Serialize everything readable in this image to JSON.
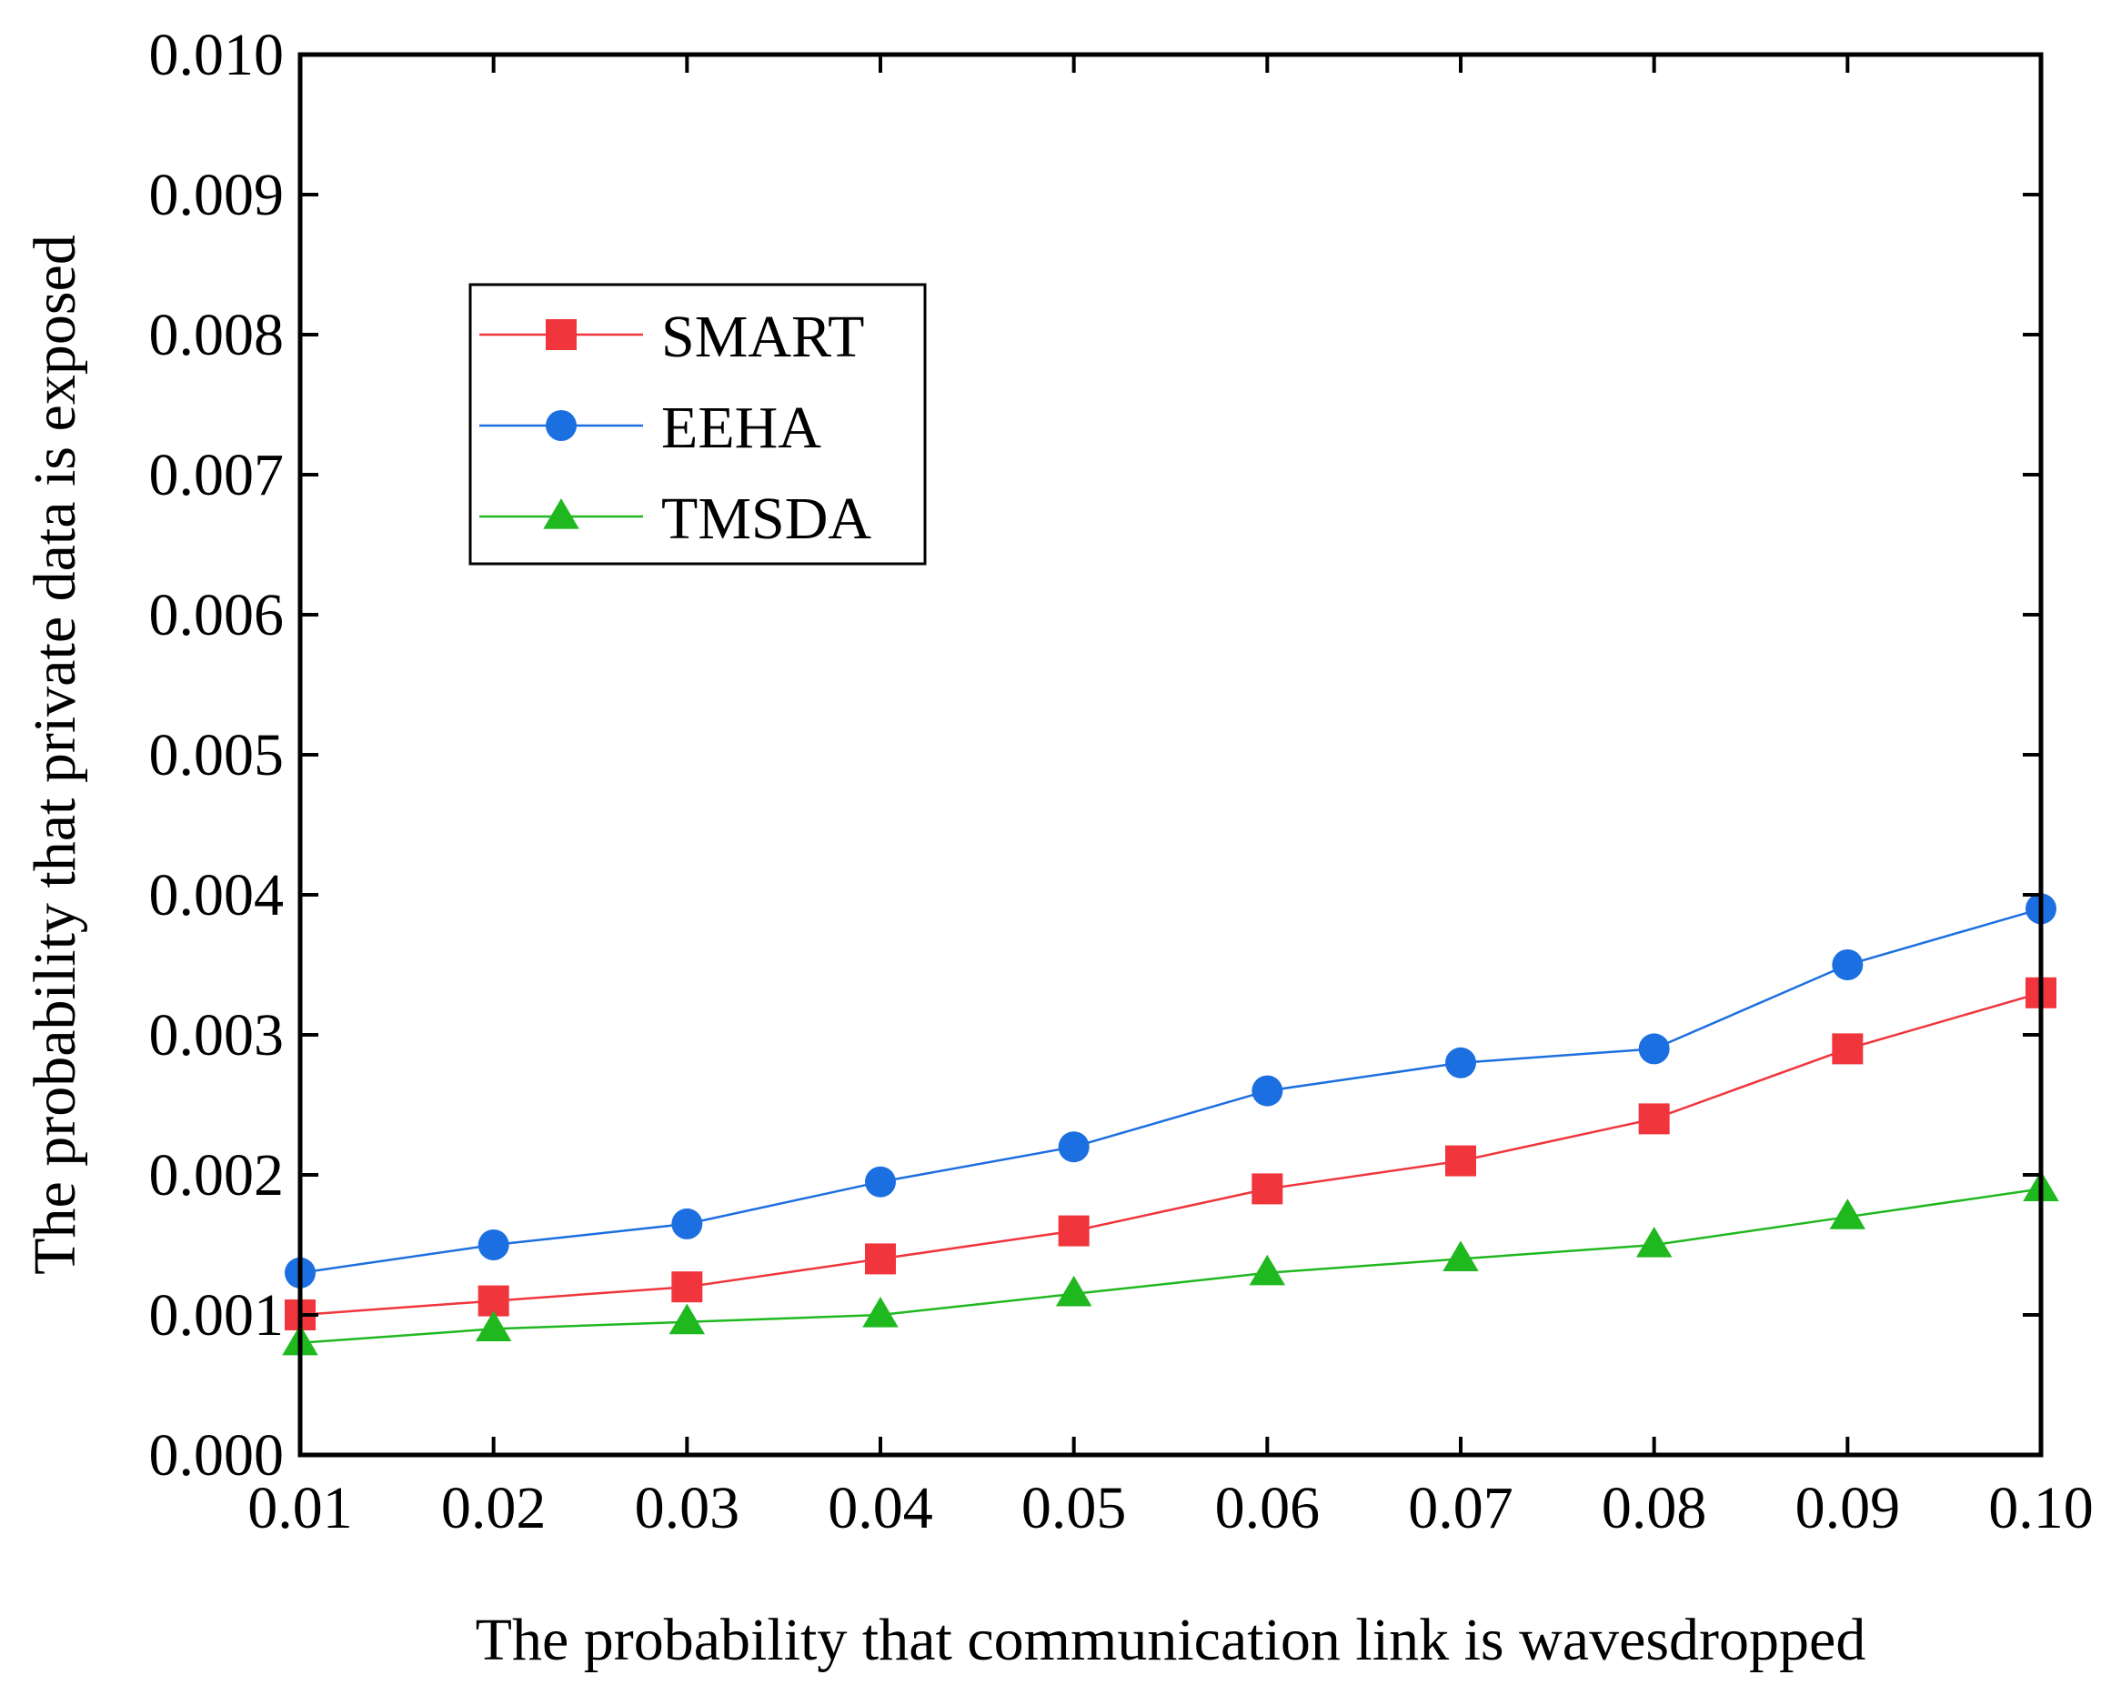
{
  "chart_data": {
    "type": "line",
    "title": "",
    "xlabel": "The probability that communication link is wavesdropped",
    "ylabel": "The probability that private data is exposed",
    "x": [
      0.01,
      0.02,
      0.03,
      0.04,
      0.05,
      0.06,
      0.07,
      0.08,
      0.09,
      0.1
    ],
    "xlim": [
      0.01,
      0.1
    ],
    "ylim": [
      0.0,
      0.01
    ],
    "x_ticks": [
      "0.01",
      "0.02",
      "0.03",
      "0.04",
      "0.05",
      "0.06",
      "0.07",
      "0.08",
      "0.09",
      "0.10"
    ],
    "y_ticks": [
      "0.000",
      "0.001",
      "0.002",
      "0.003",
      "0.004",
      "0.005",
      "0.006",
      "0.007",
      "0.008",
      "0.009",
      "0.010"
    ],
    "grid": false,
    "legend_position": "upper-left",
    "series": [
      {
        "name": "SMART",
        "color": "#f0353c",
        "marker": "square",
        "values": [
          0.001,
          0.0011,
          0.0012,
          0.0014,
          0.0016,
          0.0019,
          0.0021,
          0.0024,
          0.0029,
          0.0033
        ]
      },
      {
        "name": "EEHA",
        "color": "#1c6fe0",
        "marker": "circle",
        "values": [
          0.0013,
          0.0015,
          0.00165,
          0.00195,
          0.0022,
          0.0026,
          0.0028,
          0.0029,
          0.0035,
          0.0039
        ]
      },
      {
        "name": "TMSDA",
        "color": "#1fb81f",
        "marker": "triangle",
        "values": [
          0.0008,
          0.0009,
          0.00095,
          0.001,
          0.00115,
          0.0013,
          0.0014,
          0.0015,
          0.0017,
          0.0019
        ]
      }
    ]
  }
}
